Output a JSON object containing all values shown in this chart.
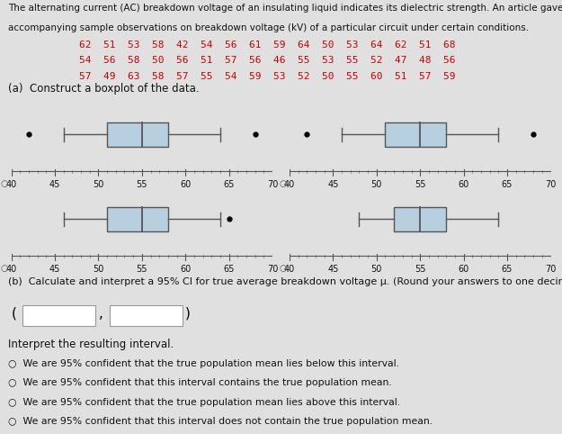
{
  "title_line1": "The alternating current (AC) breakdown voltage of an insulating liquid indicates its dielectric strength. An article gave the",
  "title_line2": "accompanying sample observations on breakdown voltage (kV) of a particular circuit under certain conditions.",
  "data_rows": [
    "62  51  53  58  42  54  56  61  59  64  50  53  64  62  51  68",
    "54  56  58  50  56  51  57  56  46  55  53  55  52  47  48  56",
    "57  49  63  58  57  55  54  59  53  52  50  55  60  51  57  59"
  ],
  "data": [
    62,
    51,
    53,
    58,
    42,
    54,
    56,
    61,
    59,
    64,
    50,
    53,
    64,
    62,
    51,
    68,
    54,
    56,
    58,
    50,
    56,
    51,
    57,
    56,
    46,
    55,
    53,
    55,
    52,
    47,
    48,
    56,
    57,
    49,
    63,
    58,
    57,
    55,
    54,
    59,
    53,
    52,
    50,
    55,
    60,
    51,
    57,
    59
  ],
  "part_a": "(a)  Construct a boxplot of the data.",
  "part_b": "(b)  Calculate and interpret a 95% CI for true average breakdown voltage μ. (Round your answers to one decimal place.)",
  "interpret_label": "Interpret the resulting interval.",
  "radio_options": [
    "We are 95% confident that the true population mean lies below this interval.",
    "We are 95% confident that this interval contains the true population mean.",
    "We are 95% confident that the true population mean lies above this interval.",
    "We are 95% confident that this interval does not contain the true population mean."
  ],
  "xmin": 40,
  "xmax": 70,
  "xticks": [
    40,
    45,
    50,
    55,
    60,
    65,
    70
  ],
  "bp_configs": [
    {
      "wlo": 46,
      "q1": 51,
      "med": 55,
      "q3": 58,
      "whi": 64,
      "out_lo": [
        42
      ],
      "out_hi": [
        68
      ]
    },
    {
      "wlo": 46,
      "q1": 51,
      "med": 55,
      "q3": 58,
      "whi": 64,
      "out_lo": [
        42
      ],
      "out_hi": [
        68
      ]
    },
    {
      "wlo": 46,
      "q1": 51,
      "med": 55,
      "q3": 58,
      "whi": 64,
      "out_lo": [],
      "out_hi": [
        65
      ]
    },
    {
      "wlo": 48,
      "q1": 52,
      "med": 55,
      "q3": 58,
      "whi": 64,
      "out_lo": [],
      "out_hi": []
    }
  ],
  "box_color": "#b8cfe0",
  "box_edge": "#555555",
  "bg_color": "#e0e0e0",
  "data_color": "#cc0000",
  "text_color": "#111111"
}
